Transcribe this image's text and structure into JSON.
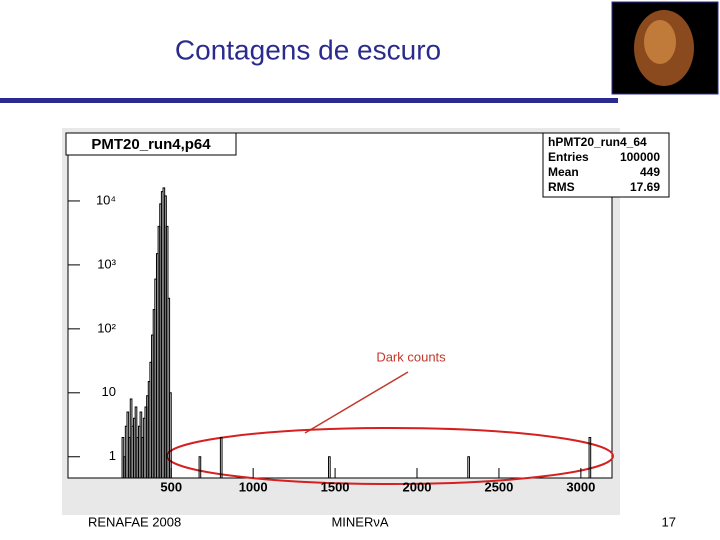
{
  "slide": {
    "title": "Contagens de escuro",
    "footer_left": "RENAFAE 2008",
    "footer_center": "MINERνA",
    "footer_right": "17"
  },
  "chart_data": {
    "type": "histogram",
    "title": "PMT20_run4,p64",
    "annotation": "Dark counts",
    "color": "#000000",
    "log_y": true,
    "bins": [
      200,
      210,
      220,
      230,
      240,
      250,
      260,
      270,
      280,
      290,
      300,
      310,
      320,
      330,
      340,
      350,
      360,
      370,
      380,
      390,
      400,
      410,
      420,
      430,
      440,
      450,
      460,
      470,
      480,
      490,
      500,
      670,
      680,
      800,
      810,
      1460,
      1470,
      2310,
      2320,
      3050,
      3060
    ],
    "values": [
      2,
      1,
      3,
      5,
      2,
      8,
      3,
      4,
      6,
      2,
      3,
      5,
      2,
      4,
      6,
      9,
      15,
      30,
      80,
      200,
      600,
      1500,
      4000,
      9000,
      14000,
      16000,
      12000,
      4000,
      300,
      10,
      0,
      1,
      0,
      2,
      0,
      1,
      0,
      1,
      0,
      2
    ],
    "xlim": [
      -130,
      3190
    ],
    "xticks": [
      500,
      1000,
      1500,
      2000,
      2500,
      3000
    ],
    "ylim": [
      0.5,
      100000
    ],
    "yticks": [
      1,
      10,
      {
        "value": 100,
        "label": "10²"
      },
      {
        "value": 1000,
        "label": "10³"
      },
      {
        "value": 10000,
        "label": "10⁴"
      }
    ],
    "stats": {
      "name": "hPMT20_run4_64",
      "rows": [
        [
          "Entries",
          100000
        ],
        [
          "Mean",
          449
        ],
        [
          "RMS",
          17.69
        ]
      ]
    }
  }
}
